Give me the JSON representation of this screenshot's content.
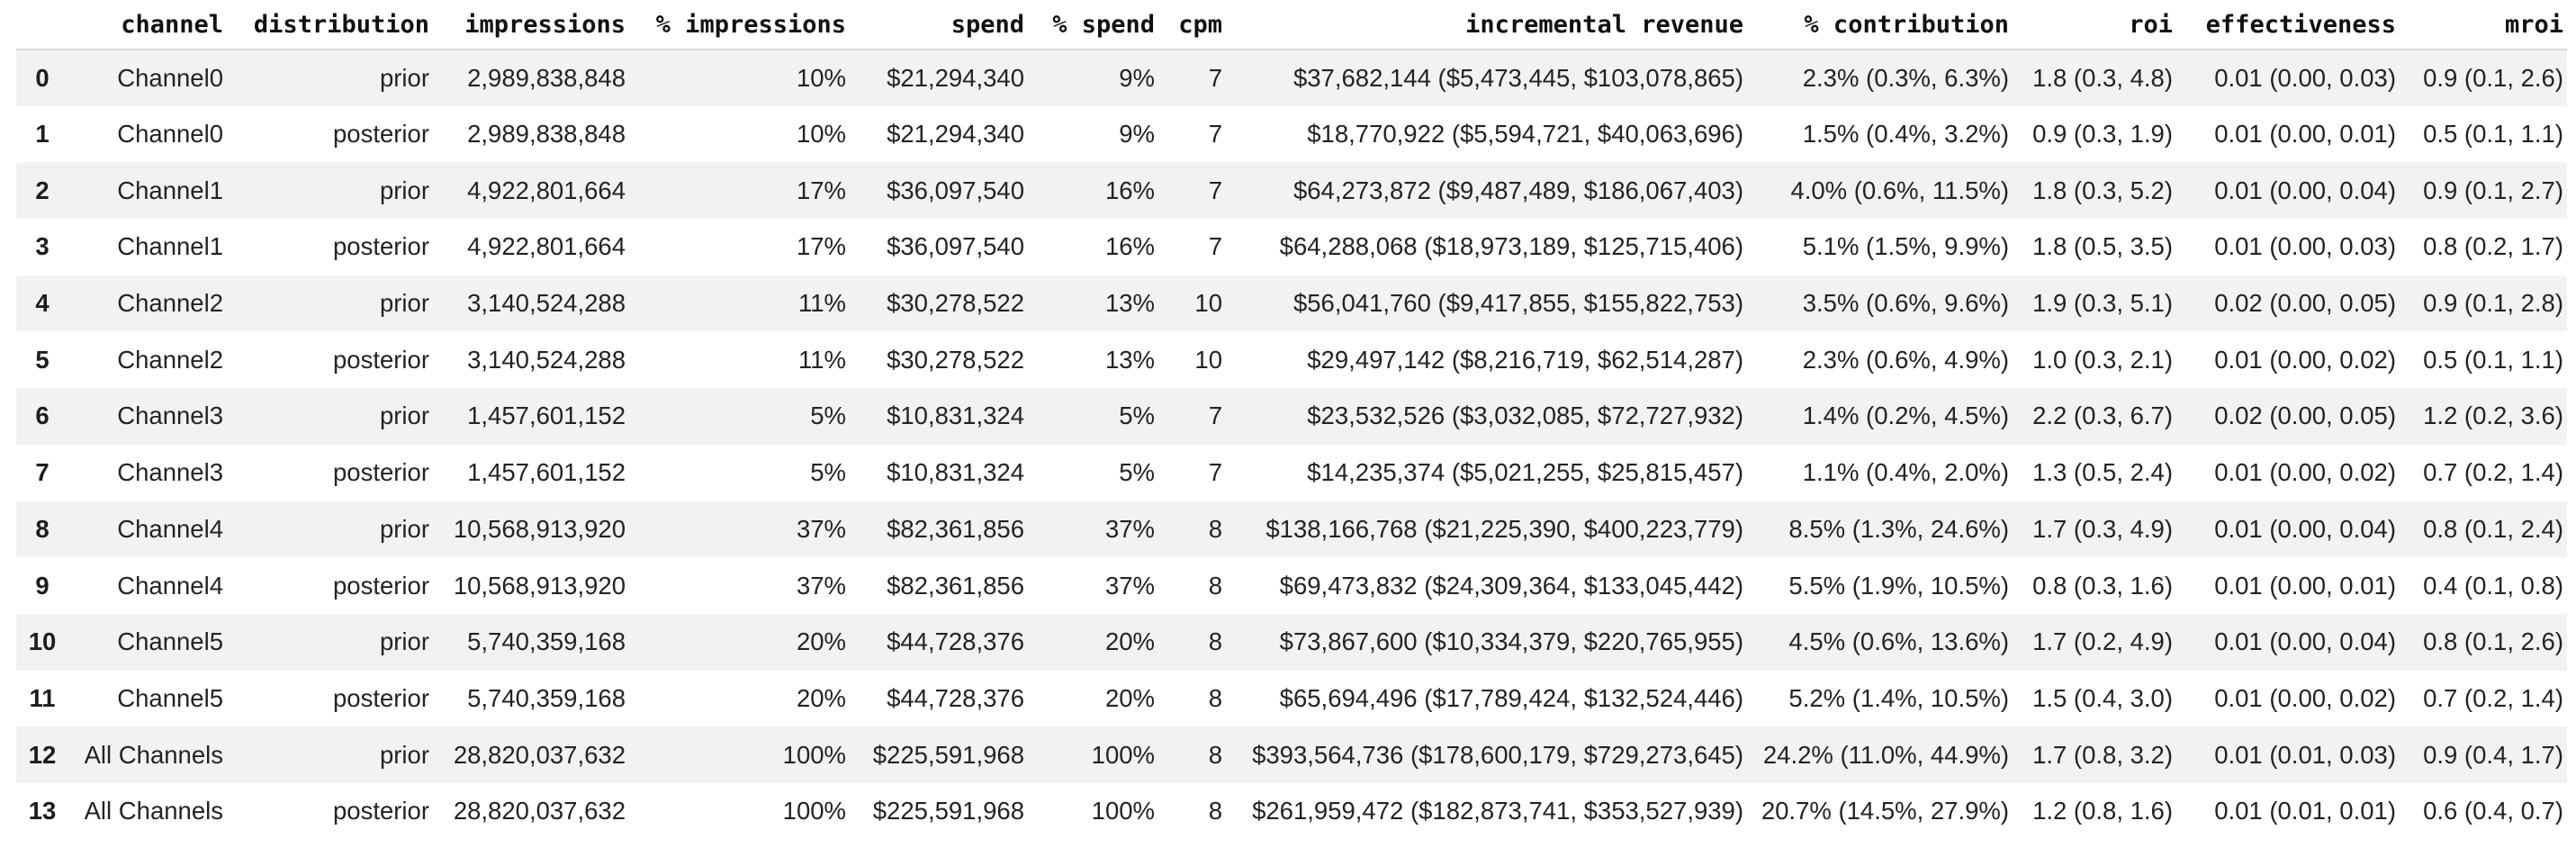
{
  "table": {
    "columns": [
      {
        "key": "index",
        "label": ""
      },
      {
        "key": "channel",
        "label": "channel"
      },
      {
        "key": "distribution",
        "label": "distribution"
      },
      {
        "key": "impressions",
        "label": "impressions"
      },
      {
        "key": "pct_impressions",
        "label": "% impressions"
      },
      {
        "key": "spend",
        "label": "spend"
      },
      {
        "key": "pct_spend",
        "label": "% spend"
      },
      {
        "key": "cpm",
        "label": "cpm"
      },
      {
        "key": "incremental_revenue",
        "label": "incremental revenue"
      },
      {
        "key": "pct_contribution",
        "label": "% contribution"
      },
      {
        "key": "roi",
        "label": "roi"
      },
      {
        "key": "effectiveness",
        "label": "effectiveness"
      },
      {
        "key": "mroi",
        "label": "mroi"
      }
    ],
    "rows": [
      {
        "index": "0",
        "cells": [
          "Channel0",
          "prior",
          "2,989,838,848",
          "10%",
          "$21,294,340",
          "9%",
          "7",
          "$37,682,144 ($5,473,445, $103,078,865)",
          "2.3% (0.3%, 6.3%)",
          "1.8 (0.3, 4.8)",
          "0.01 (0.00, 0.03)",
          "0.9 (0.1, 2.6)"
        ]
      },
      {
        "index": "1",
        "cells": [
          "Channel0",
          "posterior",
          "2,989,838,848",
          "10%",
          "$21,294,340",
          "9%",
          "7",
          "$18,770,922 ($5,594,721, $40,063,696)",
          "1.5% (0.4%, 3.2%)",
          "0.9 (0.3, 1.9)",
          "0.01 (0.00, 0.01)",
          "0.5 (0.1, 1.1)"
        ]
      },
      {
        "index": "2",
        "cells": [
          "Channel1",
          "prior",
          "4,922,801,664",
          "17%",
          "$36,097,540",
          "16%",
          "7",
          "$64,273,872 ($9,487,489, $186,067,403)",
          "4.0% (0.6%, 11.5%)",
          "1.8 (0.3, 5.2)",
          "0.01 (0.00, 0.04)",
          "0.9 (0.1, 2.7)"
        ]
      },
      {
        "index": "3",
        "cells": [
          "Channel1",
          "posterior",
          "4,922,801,664",
          "17%",
          "$36,097,540",
          "16%",
          "7",
          "$64,288,068 ($18,973,189, $125,715,406)",
          "5.1% (1.5%, 9.9%)",
          "1.8 (0.5, 3.5)",
          "0.01 (0.00, 0.03)",
          "0.8 (0.2, 1.7)"
        ]
      },
      {
        "index": "4",
        "cells": [
          "Channel2",
          "prior",
          "3,140,524,288",
          "11%",
          "$30,278,522",
          "13%",
          "10",
          "$56,041,760 ($9,417,855, $155,822,753)",
          "3.5% (0.6%, 9.6%)",
          "1.9 (0.3, 5.1)",
          "0.02 (0.00, 0.05)",
          "0.9 (0.1, 2.8)"
        ]
      },
      {
        "index": "5",
        "cells": [
          "Channel2",
          "posterior",
          "3,140,524,288",
          "11%",
          "$30,278,522",
          "13%",
          "10",
          "$29,497,142 ($8,216,719, $62,514,287)",
          "2.3% (0.6%, 4.9%)",
          "1.0 (0.3, 2.1)",
          "0.01 (0.00, 0.02)",
          "0.5 (0.1, 1.1)"
        ]
      },
      {
        "index": "6",
        "cells": [
          "Channel3",
          "prior",
          "1,457,601,152",
          "5%",
          "$10,831,324",
          "5%",
          "7",
          "$23,532,526 ($3,032,085, $72,727,932)",
          "1.4% (0.2%, 4.5%)",
          "2.2 (0.3, 6.7)",
          "0.02 (0.00, 0.05)",
          "1.2 (0.2, 3.6)"
        ]
      },
      {
        "index": "7",
        "cells": [
          "Channel3",
          "posterior",
          "1,457,601,152",
          "5%",
          "$10,831,324",
          "5%",
          "7",
          "$14,235,374 ($5,021,255, $25,815,457)",
          "1.1% (0.4%, 2.0%)",
          "1.3 (0.5, 2.4)",
          "0.01 (0.00, 0.02)",
          "0.7 (0.2, 1.4)"
        ]
      },
      {
        "index": "8",
        "cells": [
          "Channel4",
          "prior",
          "10,568,913,920",
          "37%",
          "$82,361,856",
          "37%",
          "8",
          "$138,166,768 ($21,225,390, $400,223,779)",
          "8.5% (1.3%, 24.6%)",
          "1.7 (0.3, 4.9)",
          "0.01 (0.00, 0.04)",
          "0.8 (0.1, 2.4)"
        ]
      },
      {
        "index": "9",
        "cells": [
          "Channel4",
          "posterior",
          "10,568,913,920",
          "37%",
          "$82,361,856",
          "37%",
          "8",
          "$69,473,832 ($24,309,364, $133,045,442)",
          "5.5% (1.9%, 10.5%)",
          "0.8 (0.3, 1.6)",
          "0.01 (0.00, 0.01)",
          "0.4 (0.1, 0.8)"
        ]
      },
      {
        "index": "10",
        "cells": [
          "Channel5",
          "prior",
          "5,740,359,168",
          "20%",
          "$44,728,376",
          "20%",
          "8",
          "$73,867,600 ($10,334,379, $220,765,955)",
          "4.5% (0.6%, 13.6%)",
          "1.7 (0.2, 4.9)",
          "0.01 (0.00, 0.04)",
          "0.8 (0.1, 2.6)"
        ]
      },
      {
        "index": "11",
        "cells": [
          "Channel5",
          "posterior",
          "5,740,359,168",
          "20%",
          "$44,728,376",
          "20%",
          "8",
          "$65,694,496 ($17,789,424, $132,524,446)",
          "5.2% (1.4%, 10.5%)",
          "1.5 (0.4, 3.0)",
          "0.01 (0.00, 0.02)",
          "0.7 (0.2, 1.4)"
        ]
      },
      {
        "index": "12",
        "cells": [
          "All Channels",
          "prior",
          "28,820,037,632",
          "100%",
          "$225,591,968",
          "100%",
          "8",
          "$393,564,736 ($178,600,179, $729,273,645)",
          "24.2% (11.0%, 44.9%)",
          "1.7 (0.8, 3.2)",
          "0.01 (0.01, 0.03)",
          "0.9 (0.4, 1.7)"
        ]
      },
      {
        "index": "13",
        "cells": [
          "All Channels",
          "posterior",
          "28,820,037,632",
          "100%",
          "$225,591,968",
          "100%",
          "8",
          "$261,959,472 ($182,873,741, $353,527,939)",
          "20.7% (14.5%, 27.9%)",
          "1.2 (0.8, 1.6)",
          "0.01 (0.01, 0.01)",
          "0.6 (0.4, 0.7)"
        ]
      }
    ]
  },
  "colors": {
    "stripe": "#f2f2f2",
    "header_divider": "#d7d7d7",
    "cell_text": "#232323",
    "header_text": "#111111"
  }
}
